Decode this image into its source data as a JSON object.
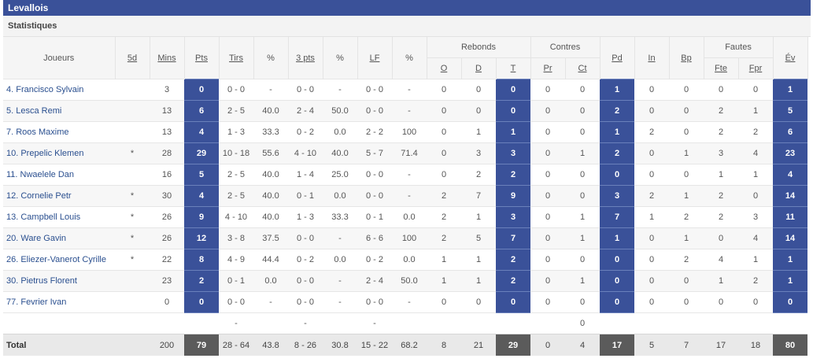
{
  "team": "Levallois",
  "section": "Statistiques",
  "headers": {
    "joueurs": "Joueurs",
    "five": "5d",
    "mins": "Mins",
    "pts": "Pts",
    "tirs": "Tirs",
    "pct1": "%",
    "three": "3 pts",
    "pct2": "%",
    "lf": "LF",
    "pct3": "%",
    "rebonds": "Rebonds",
    "reb_o": "O",
    "reb_d": "D",
    "reb_t": "T",
    "contres": "Contres",
    "con_pr": "Pr",
    "con_ct": "Ct",
    "pd": "Pd",
    "in": "In",
    "bp": "Bp",
    "fautes": "Fautes",
    "f_fte": "Fte",
    "f_fpr": "Fpr",
    "ev": "Év"
  },
  "players": [
    {
      "name": "4. Francisco Sylvain",
      "star": "",
      "mins": "3",
      "pts": "0",
      "tirs": "0 - 0",
      "pct1": "-",
      "three": "0 - 0",
      "pct2": "-",
      "lf": "0 - 0",
      "pct3": "-",
      "o": "0",
      "d": "0",
      "t": "0",
      "pr": "0",
      "ct": "0",
      "pd": "1",
      "in": "0",
      "bp": "0",
      "fte": "0",
      "fpr": "0",
      "ev": "1"
    },
    {
      "name": "5. Lesca Remi",
      "star": "",
      "mins": "13",
      "pts": "6",
      "tirs": "2 - 5",
      "pct1": "40.0",
      "three": "2 - 4",
      "pct2": "50.0",
      "lf": "0 - 0",
      "pct3": "-",
      "o": "0",
      "d": "0",
      "t": "0",
      "pr": "0",
      "ct": "0",
      "pd": "2",
      "in": "0",
      "bp": "0",
      "fte": "2",
      "fpr": "1",
      "ev": "5"
    },
    {
      "name": "7. Roos Maxime",
      "star": "",
      "mins": "13",
      "pts": "4",
      "tirs": "1 - 3",
      "pct1": "33.3",
      "three": "0 - 2",
      "pct2": "0.0",
      "lf": "2 - 2",
      "pct3": "100",
      "o": "0",
      "d": "1",
      "t": "1",
      "pr": "0",
      "ct": "0",
      "pd": "1",
      "in": "2",
      "bp": "0",
      "fte": "2",
      "fpr": "2",
      "ev": "6"
    },
    {
      "name": "10. Prepelic Klemen",
      "star": "*",
      "mins": "28",
      "pts": "29",
      "tirs": "10 - 18",
      "pct1": "55.6",
      "three": "4 - 10",
      "pct2": "40.0",
      "lf": "5 - 7",
      "pct3": "71.4",
      "o": "0",
      "d": "3",
      "t": "3",
      "pr": "0",
      "ct": "1",
      "pd": "2",
      "in": "0",
      "bp": "1",
      "fte": "3",
      "fpr": "4",
      "ev": "23"
    },
    {
      "name": "11. Nwaelele Dan",
      "star": "",
      "mins": "16",
      "pts": "5",
      "tirs": "2 - 5",
      "pct1": "40.0",
      "three": "1 - 4",
      "pct2": "25.0",
      "lf": "0 - 0",
      "pct3": "-",
      "o": "0",
      "d": "2",
      "t": "2",
      "pr": "0",
      "ct": "0",
      "pd": "0",
      "in": "0",
      "bp": "0",
      "fte": "1",
      "fpr": "1",
      "ev": "4"
    },
    {
      "name": "12. Cornelie Petr",
      "star": "*",
      "mins": "30",
      "pts": "4",
      "tirs": "2 - 5",
      "pct1": "40.0",
      "three": "0 - 1",
      "pct2": "0.0",
      "lf": "0 - 0",
      "pct3": "-",
      "o": "2",
      "d": "7",
      "t": "9",
      "pr": "0",
      "ct": "0",
      "pd": "3",
      "in": "2",
      "bp": "1",
      "fte": "2",
      "fpr": "0",
      "ev": "14"
    },
    {
      "name": "13. Campbell Louis",
      "star": "*",
      "mins": "26",
      "pts": "9",
      "tirs": "4 - 10",
      "pct1": "40.0",
      "three": "1 - 3",
      "pct2": "33.3",
      "lf": "0 - 1",
      "pct3": "0.0",
      "o": "2",
      "d": "1",
      "t": "3",
      "pr": "0",
      "ct": "1",
      "pd": "7",
      "in": "1",
      "bp": "2",
      "fte": "2",
      "fpr": "3",
      "ev": "11"
    },
    {
      "name": "20. Ware Gavin",
      "star": "*",
      "mins": "26",
      "pts": "12",
      "tirs": "3 - 8",
      "pct1": "37.5",
      "three": "0 - 0",
      "pct2": "-",
      "lf": "6 - 6",
      "pct3": "100",
      "o": "2",
      "d": "5",
      "t": "7",
      "pr": "0",
      "ct": "1",
      "pd": "1",
      "in": "0",
      "bp": "1",
      "fte": "0",
      "fpr": "4",
      "ev": "14"
    },
    {
      "name": "26. Eliezer-Vanerot Cyrille",
      "star": "*",
      "mins": "22",
      "pts": "8",
      "tirs": "4 - 9",
      "pct1": "44.4",
      "three": "0 - 2",
      "pct2": "0.0",
      "lf": "0 - 2",
      "pct3": "0.0",
      "o": "1",
      "d": "1",
      "t": "2",
      "pr": "0",
      "ct": "0",
      "pd": "0",
      "in": "0",
      "bp": "2",
      "fte": "4",
      "fpr": "1",
      "ev": "1"
    },
    {
      "name": "30. Pietrus Florent",
      "star": "",
      "mins": "23",
      "pts": "2",
      "tirs": "0 - 1",
      "pct1": "0.0",
      "three": "0 - 0",
      "pct2": "-",
      "lf": "2 - 4",
      "pct3": "50.0",
      "o": "1",
      "d": "1",
      "t": "2",
      "pr": "0",
      "ct": "1",
      "pd": "0",
      "in": "0",
      "bp": "0",
      "fte": "1",
      "fpr": "2",
      "ev": "1"
    },
    {
      "name": "77. Fevrier Ivan",
      "star": "",
      "mins": "0",
      "pts": "0",
      "tirs": "0 - 0",
      "pct1": "-",
      "three": "0 - 0",
      "pct2": "-",
      "lf": "0 - 0",
      "pct3": "-",
      "o": "0",
      "d": "0",
      "t": "0",
      "pr": "0",
      "ct": "0",
      "pd": "0",
      "in": "0",
      "bp": "0",
      "fte": "0",
      "fpr": "0",
      "ev": "0"
    }
  ],
  "team_row": {
    "tirs": "-",
    "three": "-",
    "lf": "-",
    "ct": "0"
  },
  "total": {
    "label": "Total",
    "mins": "200",
    "pts": "79",
    "tirs": "28 - 64",
    "pct1": "43.8",
    "three": "8 - 26",
    "pct2": "30.8",
    "lf": "15 - 22",
    "pct3": "68.2",
    "o": "8",
    "d": "21",
    "t": "29",
    "pr": "0",
    "ct": "4",
    "pd": "17",
    "in": "5",
    "bp": "7",
    "fte": "17",
    "fpr": "18",
    "ev": "80"
  },
  "colors": {
    "header_blue": "#3a5199",
    "total_dark": "#5b5b5b",
    "link": "#2a4f8f"
  }
}
